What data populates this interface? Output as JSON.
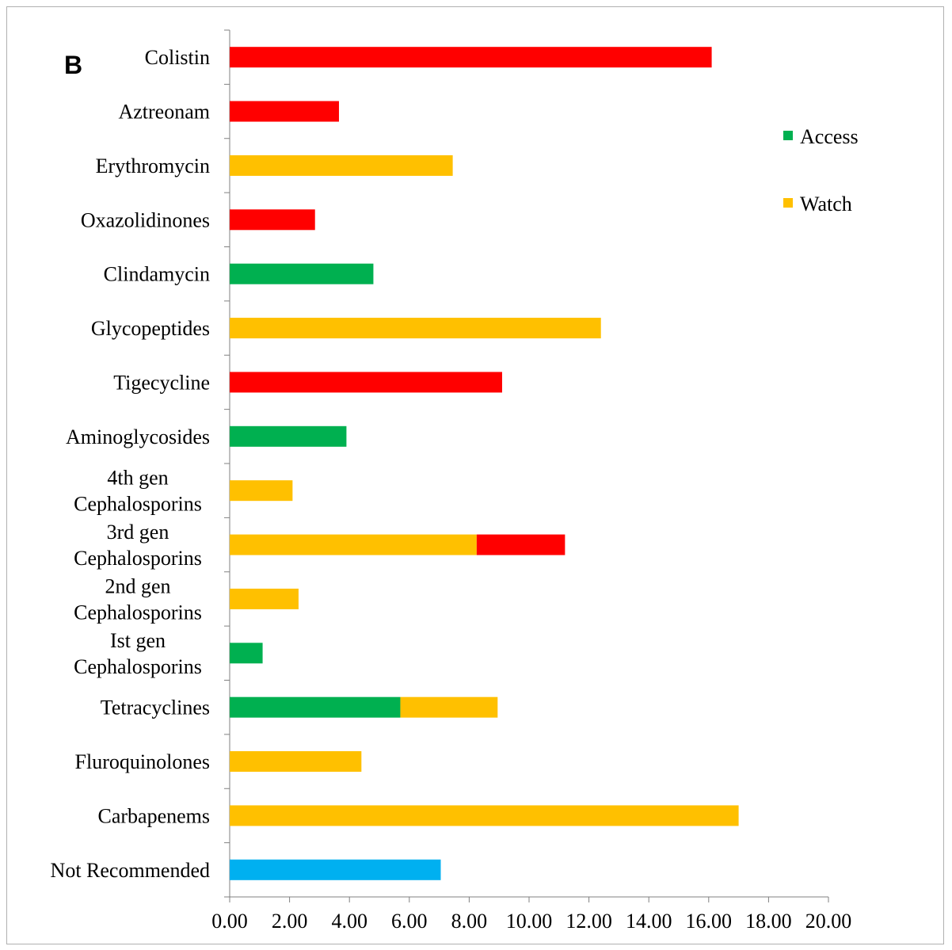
{
  "panel_label": "B",
  "chart_data": {
    "type": "bar",
    "orientation": "horizontal",
    "stacked": true,
    "title": "",
    "xlabel": "",
    "ylabel": "",
    "xlim": [
      0,
      20
    ],
    "x_ticks": [
      "0.00",
      "2.00",
      "4.00",
      "6.00",
      "8.00",
      "10.00",
      "12.00",
      "14.00",
      "16.00",
      "18.00",
      "20.00"
    ],
    "grid": false,
    "legend_position": "right",
    "categories": [
      [
        "Colistin"
      ],
      [
        "Aztreonam"
      ],
      [
        "Erythromycin"
      ],
      [
        "Oxazolidinones"
      ],
      [
        "Clindamycin"
      ],
      [
        "Glycopeptides"
      ],
      [
        "Tigecycline"
      ],
      [
        "Aminoglycosides"
      ],
      [
        "4th  gen",
        "Cephalosporins"
      ],
      [
        "3rd gen",
        "Cephalosporins"
      ],
      [
        "2nd  gen",
        "Cephalosporins"
      ],
      [
        "Ist gen",
        "Cephalosporins"
      ],
      [
        "Tetracyclines"
      ],
      [
        "Fluroquinolones"
      ],
      [
        "Carbapenems"
      ],
      [
        "Not Recommended"
      ]
    ],
    "series": [
      {
        "name": "Access",
        "color": "#00b050",
        "in_legend": true,
        "values": [
          0,
          0,
          0,
          0,
          4.8,
          0,
          0,
          3.9,
          0,
          0,
          0,
          1.1,
          5.7,
          0,
          0,
          0
        ]
      },
      {
        "name": "Watch",
        "color": "#ffc000",
        "in_legend": true,
        "values": [
          0,
          0,
          7.45,
          0,
          0,
          12.4,
          0,
          0,
          2.1,
          8.25,
          2.3,
          0,
          3.25,
          4.4,
          17.0,
          0
        ]
      },
      {
        "color": "#ff0000",
        "in_legend": false,
        "values": [
          16.1,
          3.65,
          0,
          2.85,
          0,
          0,
          9.1,
          0,
          0,
          2.95,
          0,
          0,
          0,
          0,
          0,
          0
        ]
      },
      {
        "color": "#00b0f0",
        "in_legend": false,
        "values": [
          0,
          0,
          0,
          0,
          0,
          0,
          0,
          0,
          0,
          0,
          0,
          0,
          0,
          0,
          0,
          7.05
        ]
      }
    ]
  }
}
